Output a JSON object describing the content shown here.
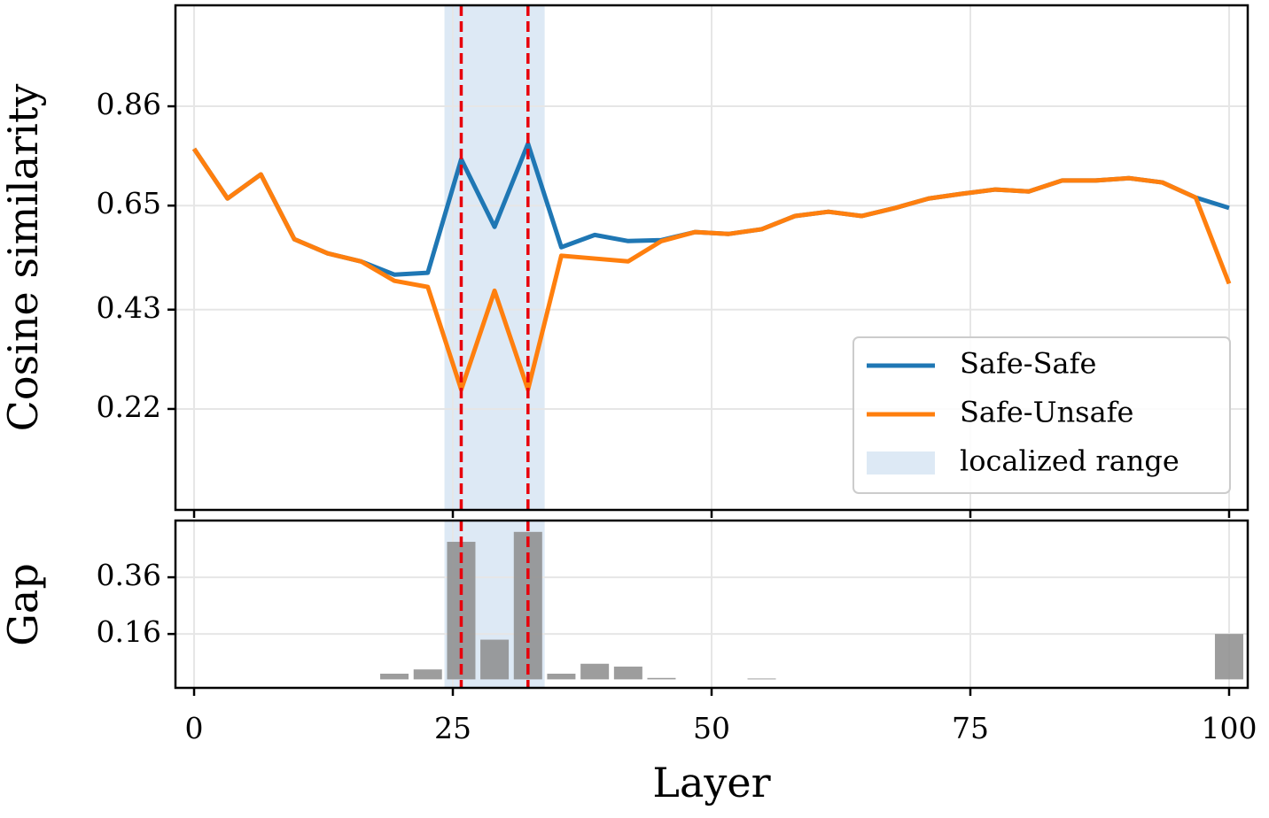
{
  "chart_data": [
    {
      "type": "line",
      "ylabel": "Cosine similarity",
      "x": [
        0,
        3.23,
        6.45,
        9.68,
        12.9,
        16.13,
        19.35,
        22.58,
        25.81,
        29.03,
        32.26,
        35.48,
        38.71,
        41.94,
        45.16,
        48.39,
        51.61,
        54.84,
        58.06,
        61.29,
        64.52,
        67.74,
        70.97,
        74.19,
        77.42,
        80.65,
        83.87,
        87.1,
        90.32,
        93.55,
        96.77,
        100
      ],
      "series": [
        {
          "name": "Safe-Safe",
          "color": "#1f77b4",
          "values": [
            0.77,
            0.665,
            0.716,
            0.579,
            0.549,
            0.532,
            0.504,
            0.508,
            0.748,
            0.605,
            0.781,
            0.562,
            0.588,
            0.575,
            0.577,
            0.594,
            0.59,
            0.6,
            0.628,
            0.637,
            0.628,
            0.645,
            0.665,
            0.675,
            0.684,
            0.68,
            0.703,
            0.703,
            0.708,
            0.699,
            0.667,
            0.645
          ]
        },
        {
          "name": "Safe-Unsafe",
          "color": "#ff7f0e",
          "values": [
            0.77,
            0.665,
            0.716,
            0.579,
            0.549,
            0.532,
            0.491,
            0.478,
            0.261,
            0.47,
            0.261,
            0.544,
            0.538,
            0.532,
            0.575,
            0.594,
            0.59,
            0.6,
            0.628,
            0.637,
            0.628,
            0.645,
            0.665,
            0.675,
            0.684,
            0.68,
            0.703,
            0.703,
            0.708,
            0.699,
            0.667,
            0.485
          ]
        }
      ],
      "shade": {
        "name": "localized range",
        "color": "#c6dbef",
        "range": [
          24.19,
          33.87
        ]
      },
      "vlines": [
        25.81,
        32.26
      ],
      "xlim": [
        -1.8,
        101.8
      ],
      "xticks": [
        0,
        25,
        50,
        75,
        100
      ],
      "ylim": [
        0.0065,
        1.0735
      ],
      "yticks": [
        0.22,
        0.43,
        0.65,
        0.86
      ],
      "grid": true,
      "legend": "lower right"
    },
    {
      "type": "bar",
      "ylabel": "Gap",
      "xlabel": "Layer",
      "x": [
        0,
        3.23,
        6.45,
        9.68,
        12.9,
        16.13,
        19.35,
        22.58,
        25.81,
        29.03,
        32.26,
        35.48,
        38.71,
        41.94,
        45.16,
        48.39,
        51.61,
        54.84,
        58.06,
        61.29,
        64.52,
        67.74,
        70.97,
        74.19,
        77.42,
        80.65,
        83.87,
        87.1,
        90.32,
        93.55,
        96.77,
        100
      ],
      "values": [
        0,
        0,
        0,
        0,
        0,
        0,
        0.02,
        0.035,
        0.485,
        0.14,
        0.52,
        0.02,
        0.055,
        0.045,
        0.005,
        0,
        0,
        0.003,
        0,
        0,
        0,
        0,
        0,
        0,
        0,
        0,
        0,
        0,
        0,
        0,
        0,
        0.16
      ],
      "color": "#8c8c8c",
      "shade": {
        "color": "#c6dbef",
        "range": [
          24.19,
          33.87
        ]
      },
      "vlines": [
        25.81,
        32.26
      ],
      "xlim": [
        -1.8,
        101.8
      ],
      "xticks": [
        0,
        25,
        50,
        75,
        100
      ],
      "ylim": [
        -0.03,
        0.56
      ],
      "yticks": [
        0.16,
        0.36
      ],
      "grid": true
    }
  ]
}
